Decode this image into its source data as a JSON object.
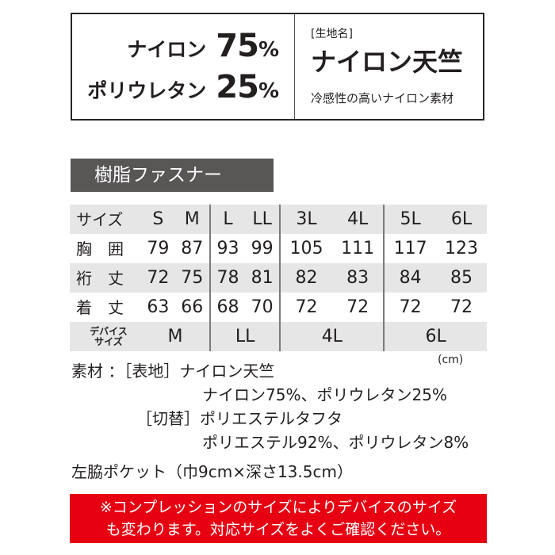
{
  "composition": [
    {
      "name": "ナイロン",
      "percent": "75",
      "unit": "%"
    },
    {
      "name": "ポリウレタン",
      "percent": "25",
      "unit": "%"
    }
  ],
  "fabric": {
    "label": "[生地名]",
    "name": "ナイロン天竺",
    "desc": "冷感性の高いナイロン素材"
  },
  "zipper_banner": "樹脂ファスナー",
  "table": {
    "header": [
      "サイズ",
      "S",
      "M",
      "L",
      "LL",
      "3L",
      "4L",
      "5L",
      "6L"
    ],
    "rows": [
      {
        "label": "胸　囲",
        "values": [
          "79",
          "87",
          "93",
          "99",
          "105",
          "111",
          "117",
          "123"
        ]
      },
      {
        "label": "裄　丈",
        "values": [
          "72",
          "75",
          "78",
          "81",
          "82",
          "83",
          "84",
          "85"
        ]
      },
      {
        "label": "着　丈",
        "values": [
          "63",
          "66",
          "68",
          "70",
          "72",
          "72",
          "72",
          "72"
        ]
      }
    ],
    "device": {
      "label1": "デバイス",
      "label2": "サイズ",
      "values": [
        "M",
        "LL",
        "4L",
        "6L"
      ]
    }
  },
  "unit": "(cm)",
  "materials": {
    "line1": "素材 ：［表地］ナイロン天竺",
    "line2": "ナイロン75%、ポリウレタン25%",
    "line3": "［切替］ポリエステルタフタ",
    "line4": "ポリエステル92%、ポリウレタン8%",
    "pocket": "左脇ポケット（巾9cm×深さ13.5cm）"
  },
  "notice": {
    "line1": "※コンプレッションのサイズによりデバイスのサイズ",
    "line2": "も変わります。対応サイズをよくご確認ください。"
  },
  "colors": {
    "notice_bg": "#e60012",
    "banner_bg": "#595656",
    "row_gray": "#e6e6e6"
  }
}
